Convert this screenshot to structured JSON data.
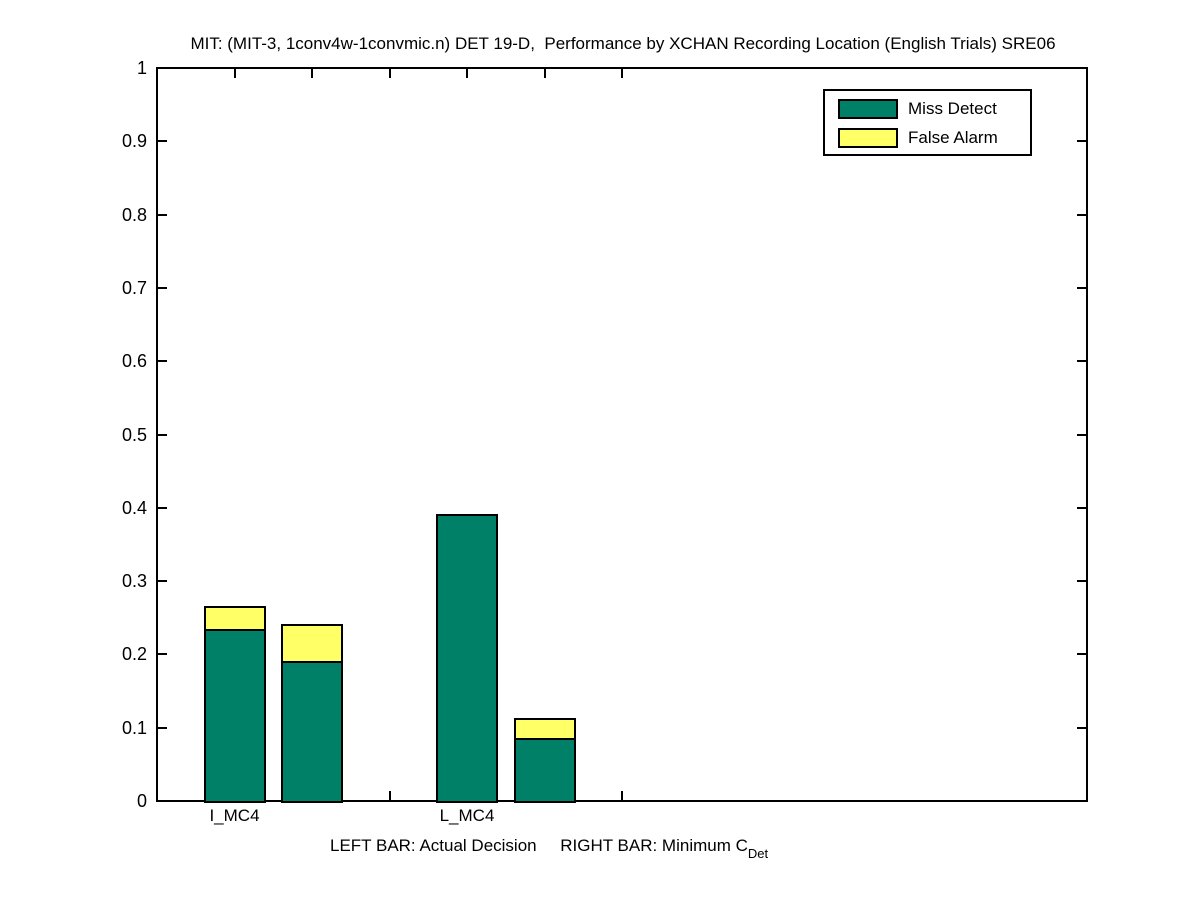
{
  "figure": {
    "title": "MIT: (MIT-3, 1conv4w-1convmic.n) DET 19-D,  Performance by XCHAN Recording Location (English Trials) SRE06",
    "background_color": "#FFFFFF"
  },
  "legend": {
    "position": "top-right",
    "items": [
      {
        "label": "Miss Detect",
        "color": "#008066"
      },
      {
        "label": "False Alarm",
        "color": "#FFFF66"
      }
    ]
  },
  "xlabel": {
    "text": "LEFT BAR: Actual Decision     RIGHT BAR: Minimum C",
    "subscript": "Det"
  },
  "chart_data": {
    "type": "bar",
    "stacked": true,
    "title": "MIT: (MIT-3, 1conv4w-1convmic.n) DET 19-D,  Performance by XCHAN Recording Location (English Trials) SRE06",
    "xlabel": "LEFT BAR: Actual Decision     RIGHT BAR: Minimum C_Det",
    "ylabel": "",
    "ylim": [
      0,
      1
    ],
    "xlim": [
      0,
      12
    ],
    "grid": false,
    "ytick_values": [
      0,
      0.1,
      0.2,
      0.3,
      0.4,
      0.5,
      0.6,
      0.7,
      0.8,
      0.9,
      1
    ],
    "ytick_labels": [
      "0",
      "0.1",
      "0.2",
      "0.3",
      "0.4",
      "0.5",
      "0.6",
      "0.7",
      "0.8",
      "0.9",
      "1"
    ],
    "xticks": [
      {
        "pos": 1,
        "label": "I_MC4"
      },
      {
        "pos": 2,
        "label": ""
      },
      {
        "pos": 3,
        "label": ""
      },
      {
        "pos": 4,
        "label": "L_MC4"
      },
      {
        "pos": 5,
        "label": ""
      },
      {
        "pos": 6,
        "label": ""
      }
    ],
    "bar_width": 0.8,
    "series_colors": {
      "miss_detect": "#008066",
      "false_alarm": "#FFFF66"
    },
    "bars": [
      {
        "x": 1,
        "location": "I_MC4",
        "kind": "Actual Decision",
        "miss_detect": 0.234,
        "false_alarm": 0.032
      },
      {
        "x": 2,
        "location": "I_MC4",
        "kind": "Minimum CDet",
        "miss_detect": 0.192,
        "false_alarm": 0.05
      },
      {
        "x": 4,
        "location": "L_MC4",
        "kind": "Actual Decision",
        "miss_detect": 0.391,
        "false_alarm": 0.0
      },
      {
        "x": 5,
        "location": "L_MC4",
        "kind": "Minimum CDet",
        "miss_detect": 0.086,
        "false_alarm": 0.027
      }
    ]
  }
}
